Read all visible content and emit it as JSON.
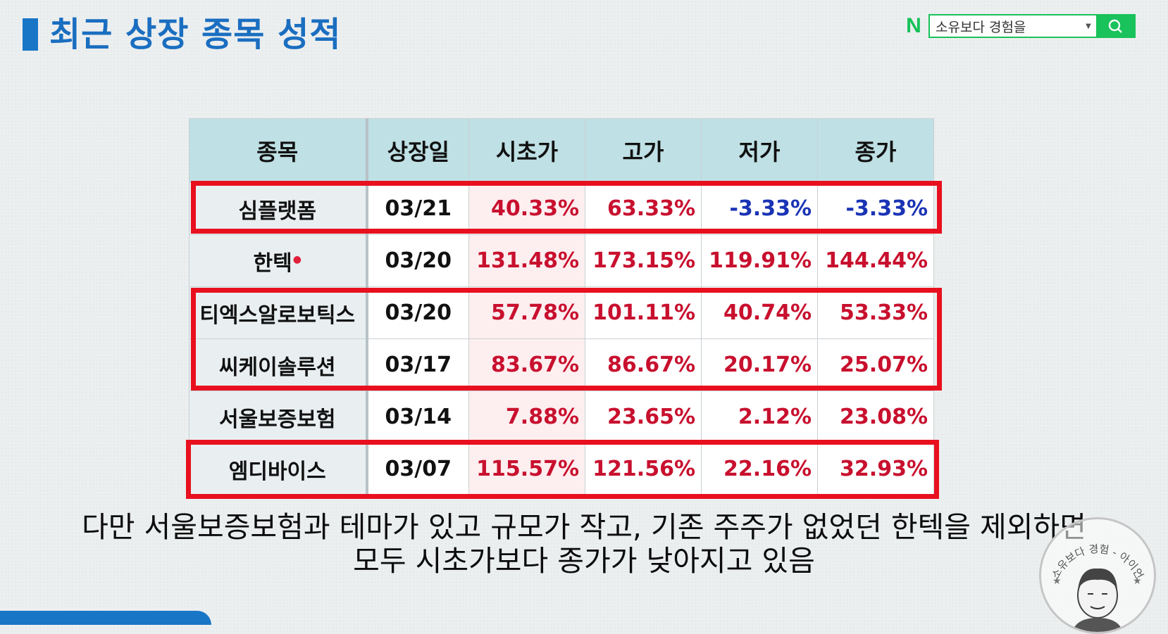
{
  "title": "최근 상장 종목 성적",
  "search": {
    "logo": "N",
    "query": "소유보다 경험을"
  },
  "table": {
    "headers": [
      "종목",
      "상장일",
      "시초가",
      "고가",
      "저가",
      "종가"
    ],
    "rows": [
      {
        "name": "심플랫폼",
        "date": "03/21",
        "open": "40.33%",
        "high": "63.33%",
        "low": "-3.33%",
        "close": "-3.33%"
      },
      {
        "name": "한텍",
        "date": "03/20",
        "open": "131.48%",
        "high": "173.15%",
        "low": "119.91%",
        "close": "144.44%"
      },
      {
        "name": "티엑스알로보틱스",
        "date": "03/20",
        "open": "57.78%",
        "high": "101.11%",
        "low": "40.74%",
        "close": "53.33%"
      },
      {
        "name": "씨케이솔루션",
        "date": "03/17",
        "open": "83.67%",
        "high": "86.67%",
        "low": "20.17%",
        "close": "25.07%"
      },
      {
        "name": "서울보증보험",
        "date": "03/14",
        "open": "7.88%",
        "high": "23.65%",
        "low": "2.12%",
        "close": "23.08%"
      },
      {
        "name": "엠디바이스",
        "date": "03/07",
        "open": "115.57%",
        "high": "121.56%",
        "low": "22.16%",
        "close": "32.93%"
      }
    ]
  },
  "subtitle": {
    "line1": "다만 서울보증보험과 테마가 있고 규모가 작고, 기존 주주가 없었던 한텍을 제외하면",
    "line2": "모두 시초가보다 종가가 낮아지고 있음"
  },
  "stamp_text": "소유보다 경험 - 아이언",
  "colors": {
    "title": "#1a6ec0",
    "header_bg": "#bfe0e4",
    "positive": "#c8102e",
    "negative": "#1a33b5",
    "highlight": "#e8101f",
    "search_green": "#19c25a"
  }
}
